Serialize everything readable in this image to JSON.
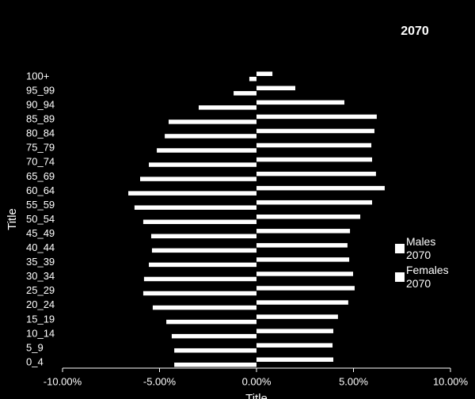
{
  "chart_data": {
    "type": "pyramid",
    "title": "2070",
    "x_label": "Title",
    "y_label": "Title",
    "categories": [
      "0_4",
      "5_9",
      "10_14",
      "15_19",
      "20_24",
      "25_29",
      "30_34",
      "35_39",
      "40_44",
      "45_49",
      "50_54",
      "55_59",
      "60_64",
      "65_69",
      "70_74",
      "75_79",
      "80_84",
      "85_89",
      "90_94",
      "95_99",
      "100+"
    ],
    "series": [
      {
        "name": "Males 2070",
        "color": "#ffffff",
        "values": [
          -4.24,
          -4.24,
          -4.37,
          -4.65,
          -5.35,
          -5.84,
          -5.8,
          -5.55,
          -5.39,
          -5.43,
          -5.84,
          -6.29,
          -6.61,
          -6.0,
          -5.55,
          -5.14,
          -4.73,
          -4.53,
          -2.98,
          -1.18,
          -0.37
        ]
      },
      {
        "name": "Females 2070",
        "color": "#ffffff",
        "values": [
          3.96,
          3.92,
          3.96,
          4.2,
          4.73,
          5.06,
          4.98,
          4.78,
          4.69,
          4.82,
          5.35,
          5.96,
          6.61,
          6.16,
          5.96,
          5.92,
          6.08,
          6.2,
          4.53,
          2.0,
          0.82
        ]
      }
    ],
    "xlim": [
      -10,
      10
    ],
    "xticks": [
      {
        "value": -10,
        "label": "-10.00%"
      },
      {
        "value": -5,
        "label": "-5.00%"
      },
      {
        "value": 0,
        "label": "0.00%"
      },
      {
        "value": 5,
        "label": "5.00%"
      },
      {
        "value": 10,
        "label": "10.00%"
      }
    ],
    "legend": "right"
  }
}
